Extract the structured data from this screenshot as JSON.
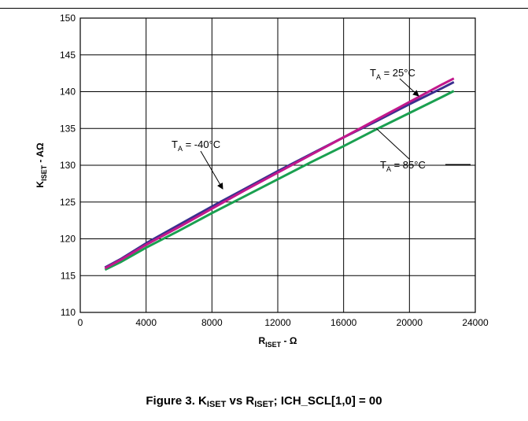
{
  "chart_data": {
    "type": "line",
    "xlabel": {
      "main": "R",
      "sub": "ISET",
      "unit": " - Ω"
    },
    "ylabel": {
      "main": "K",
      "sub": "ISET",
      "unit": " - AΩ"
    },
    "xlim": [
      0,
      24000
    ],
    "ylim": [
      110,
      150
    ],
    "xticks": [
      "0",
      "4000",
      "8000",
      "12000",
      "16000",
      "20000",
      "24000"
    ],
    "yticks": [
      "110",
      "115",
      "120",
      "125",
      "130",
      "135",
      "140",
      "145",
      "150"
    ],
    "grid": true,
    "series": [
      {
        "name": "TA = 25°C",
        "color": "#c2188c",
        "x": [
          1500,
          2500,
          4000,
          6000,
          8000,
          10000,
          12000,
          14000,
          16000,
          18000,
          20000,
          22000,
          22700
        ],
        "y": [
          116.0,
          117.2,
          119.2,
          121.6,
          124.1,
          126.6,
          129.0,
          131.4,
          133.8,
          136.2,
          138.6,
          141.0,
          141.8
        ]
      },
      {
        "name": "TA = -40°C",
        "color": "#3a2f8f",
        "x": [
          1500,
          2500,
          4000,
          6000,
          8000,
          10000,
          12000,
          14000,
          16000,
          18000,
          20000,
          22000,
          22700
        ],
        "y": [
          116.1,
          117.3,
          119.4,
          121.9,
          124.4,
          126.8,
          129.2,
          131.5,
          133.8,
          136.0,
          138.3,
          140.5,
          141.3
        ]
      },
      {
        "name": "TA = 85°C",
        "color": "#1aa050",
        "x": [
          1500,
          2500,
          4000,
          6000,
          8000,
          10000,
          12000,
          14000,
          16000,
          18000,
          20000,
          22000,
          22700
        ],
        "y": [
          115.8,
          116.9,
          118.8,
          121.1,
          123.5,
          125.8,
          128.1,
          130.4,
          132.6,
          134.9,
          137.1,
          139.3,
          140.1
        ]
      }
    ],
    "annotations": [
      {
        "main": "T",
        "sub": "A",
        "rest": " = 25°C"
      },
      {
        "main": "T",
        "sub": "A",
        "rest": " = -40°C"
      },
      {
        "main": "T",
        "sub": "A",
        "rest": " = 85°C"
      }
    ]
  },
  "caption": {
    "prefix": "Figure 3. K",
    "sub1": "ISET",
    "mid": " vs R",
    "sub2": "ISET",
    "suffix": "; ICH_SCL[1,0] = 00"
  }
}
